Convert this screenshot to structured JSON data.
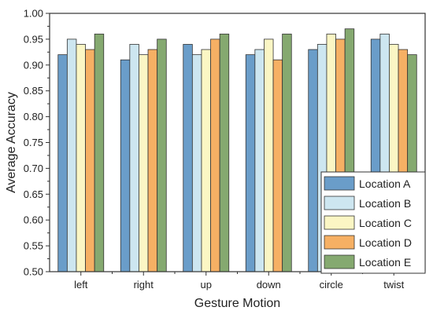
{
  "chart_data": {
    "type": "bar",
    "title": "",
    "xlabel": "Gesture Motion",
    "ylabel": "Average Accuracy",
    "ylim": [
      0.5,
      1.0
    ],
    "yticks": [
      "0.50",
      "0.55",
      "0.60",
      "0.65",
      "0.70",
      "0.75",
      "0.80",
      "0.85",
      "0.90",
      "0.95",
      "1.00"
    ],
    "categories": [
      "left",
      "right",
      "up",
      "down",
      "circle",
      "twist"
    ],
    "series": [
      {
        "name": "Location A",
        "color": "#6a9dc9",
        "values": [
          0.92,
          0.91,
          0.94,
          0.92,
          0.93,
          0.95
        ]
      },
      {
        "name": "Location B",
        "color": "#cde6f0",
        "values": [
          0.95,
          0.94,
          0.92,
          0.93,
          0.94,
          0.96
        ]
      },
      {
        "name": "Location C",
        "color": "#fbf6c4",
        "values": [
          0.94,
          0.92,
          0.93,
          0.95,
          0.96,
          0.94
        ]
      },
      {
        "name": "Location D",
        "color": "#f6b064",
        "values": [
          0.93,
          0.93,
          0.95,
          0.91,
          0.95,
          0.93
        ]
      },
      {
        "name": "Location E",
        "color": "#85a970",
        "values": [
          0.96,
          0.95,
          0.96,
          0.96,
          0.97,
          0.92
        ]
      }
    ],
    "legend_position": "bottom-right",
    "grid": false
  }
}
